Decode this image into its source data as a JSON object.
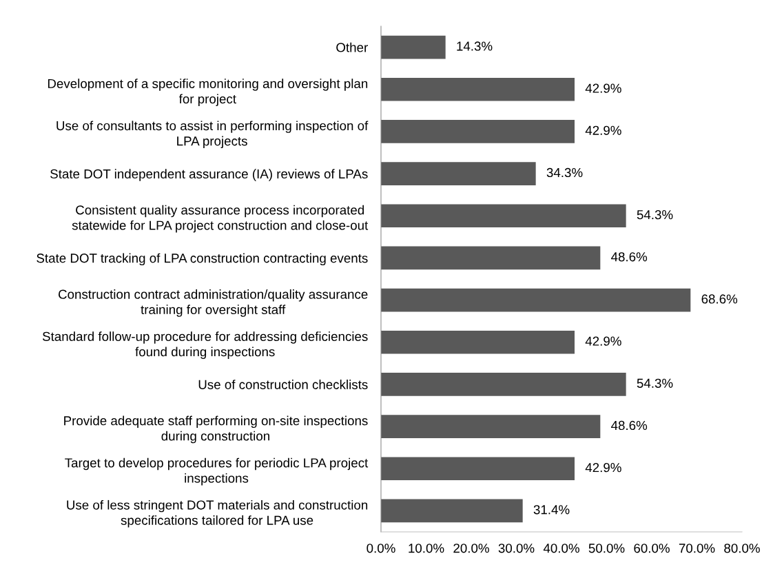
{
  "chart_data": {
    "type": "bar",
    "orientation": "horizontal",
    "categories": [
      "Other",
      "Development of a specific monitoring and oversight plan\nfor project",
      "Use of consultants to assist in performing inspection of\nLPA projects",
      "State DOT independent assurance (IA) reviews of LPAs",
      "Consistent quality assurance process incorporated\nstatewide for LPA project construction and close-out",
      "State DOT tracking of LPA construction contracting events",
      "Construction contract administration/quality assurance\ntraining for oversight staff",
      "Standard follow-up procedure for addressing deficiencies\nfound during inspections",
      "Use of construction checklists",
      "Provide adequate staff performing on-site inspections\nduring construction",
      "Target to develop procedures for periodic LPA project\ninspections",
      "Use of less stringent DOT materials and construction\nspecifications tailored for LPA use"
    ],
    "values": [
      14.3,
      42.9,
      42.9,
      34.3,
      54.3,
      48.6,
      68.6,
      42.9,
      54.3,
      48.6,
      42.9,
      31.4
    ],
    "value_labels": [
      "14.3%",
      "42.9%",
      "42.9%",
      "34.3%",
      "54.3%",
      "48.6%",
      "68.6%",
      "42.9%",
      "54.3%",
      "48.6%",
      "42.9%",
      "31.4%"
    ],
    "color": "#595959",
    "xlim": [
      0,
      80
    ],
    "xticks": [
      {
        "value": 0,
        "label": "0.0%"
      },
      {
        "value": 10,
        "label": "10.0%"
      },
      {
        "value": 20,
        "label": "20.0%"
      },
      {
        "value": 30,
        "label": "30.0%"
      },
      {
        "value": 40,
        "label": "40.0%"
      },
      {
        "value": 50,
        "label": "50.0%"
      },
      {
        "value": 60,
        "label": "60.0%"
      },
      {
        "value": 70,
        "label": "70.0%"
      },
      {
        "value": 80,
        "label": "80.0%"
      }
    ]
  }
}
